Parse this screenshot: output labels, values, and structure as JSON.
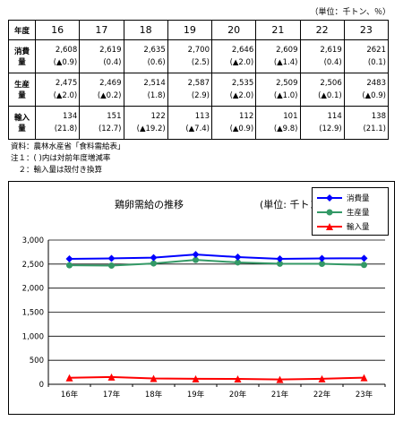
{
  "unit_note": "（単位：千トン、％）",
  "table": {
    "corner": "年度",
    "years": [
      "16",
      "17",
      "18",
      "19",
      "20",
      "21",
      "22",
      "23"
    ],
    "rows": [
      {
        "label": "消費量",
        "values": [
          "2,608",
          "2,619",
          "2,635",
          "2,700",
          "2,646",
          "2,609",
          "2,619",
          "2621"
        ],
        "rates": [
          "(▲0.9)",
          "(0.4)",
          "(0.6)",
          "(2.5)",
          "(▲2.0)",
          "(▲1.4)",
          "(0.4)",
          "(0.1)"
        ]
      },
      {
        "label": "生産量",
        "values": [
          "2,475",
          "2,469",
          "2,514",
          "2,587",
          "2,535",
          "2,509",
          "2,506",
          "2483"
        ],
        "rates": [
          "(▲2.0)",
          "(▲0.2)",
          "(1.8)",
          "(2.9)",
          "(▲2.0)",
          "(▲1.0)",
          "(▲0.1)",
          "(▲0.9)"
        ]
      },
      {
        "label": "輸入量",
        "values": [
          "134",
          "151",
          "122",
          "113",
          "112",
          "101",
          "114",
          "138"
        ],
        "rates": [
          "(21.8)",
          "(12.7)",
          "(▲19.2)",
          "(▲7.4)",
          "(▲0.9)",
          "(▲9.8)",
          "(12.9)",
          "(21.1)"
        ]
      }
    ]
  },
  "notes": [
    "資料：農林水産省「食料需給表」",
    "注１：(  )内は対前年度増減率",
    "　２：輸入量は殻付き換算"
  ],
  "colors": {
    "consumption": "#0000ff",
    "production": "#339966",
    "import": "#ff0000"
  },
  "chart_data": {
    "type": "line",
    "title": "鶏卵需給の推移",
    "unit": "(単位: 千トン)",
    "categories": [
      "16年",
      "17年",
      "18年",
      "19年",
      "20年",
      "21年",
      "22年",
      "23年"
    ],
    "ylim": [
      0,
      3000
    ],
    "yticks": [
      "0",
      "500",
      "1,000",
      "1,500",
      "2,000",
      "2,500",
      "3,000"
    ],
    "grid": true,
    "legend_position": "top-right",
    "series": [
      {
        "name": "消費量",
        "marker": "diamond",
        "values": [
          2608,
          2619,
          2635,
          2700,
          2646,
          2609,
          2619,
          2621
        ]
      },
      {
        "name": "生産量",
        "marker": "circle",
        "values": [
          2475,
          2469,
          2514,
          2587,
          2535,
          2509,
          2506,
          2483
        ]
      },
      {
        "name": "輸入量",
        "marker": "triangle",
        "values": [
          134,
          151,
          122,
          113,
          112,
          101,
          114,
          138
        ]
      }
    ]
  }
}
